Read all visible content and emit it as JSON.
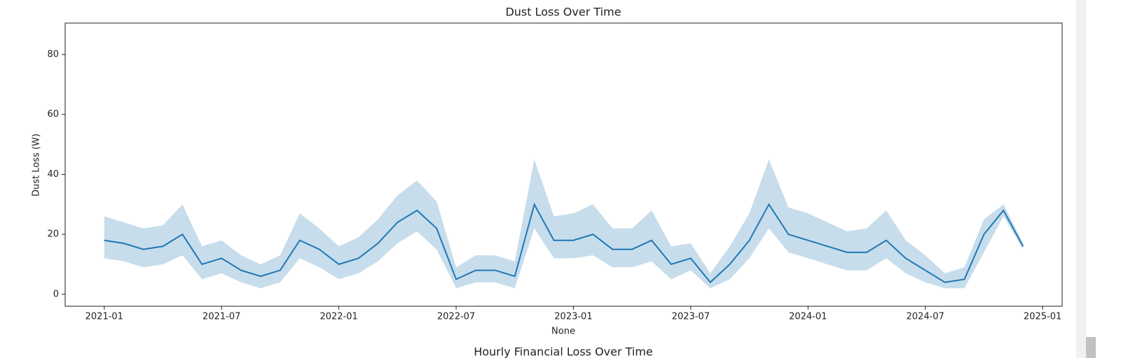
{
  "chart_data": {
    "type": "line",
    "title": "Dust Loss Over Time",
    "xlabel": "None",
    "ylabel": "Dust Loss (W)",
    "x": [
      "2021-01",
      "2021-02",
      "2021-03",
      "2021-04",
      "2021-05",
      "2021-06",
      "2021-07",
      "2021-08",
      "2021-09",
      "2021-10",
      "2021-11",
      "2021-12",
      "2022-01",
      "2022-02",
      "2022-03",
      "2022-04",
      "2022-05",
      "2022-06",
      "2022-07",
      "2022-08",
      "2022-09",
      "2022-10",
      "2022-11",
      "2022-12",
      "2023-01",
      "2023-02",
      "2023-03",
      "2023-04",
      "2023-05",
      "2023-06",
      "2023-07",
      "2023-08",
      "2023-09",
      "2023-10",
      "2023-11",
      "2023-12",
      "2024-01",
      "2024-02",
      "2024-03",
      "2024-04",
      "2024-05",
      "2024-06",
      "2024-07",
      "2024-08",
      "2024-09",
      "2024-10",
      "2024-11",
      "2024-12"
    ],
    "series": [
      {
        "color": "#1f77b4",
        "values": [
          18,
          17,
          15,
          16,
          20,
          10,
          12,
          8,
          6,
          8,
          18,
          15,
          10,
          12,
          17,
          24,
          28,
          22,
          5,
          8,
          8,
          6,
          30,
          18,
          18,
          20,
          15,
          15,
          18,
          10,
          12,
          4,
          10,
          18,
          30,
          20,
          18,
          16,
          14,
          14,
          18,
          12,
          8,
          4,
          5,
          20,
          28,
          16
        ],
        "lower": [
          12,
          11,
          9,
          10,
          13,
          5,
          7,
          4,
          2,
          4,
          12,
          9,
          5,
          7,
          11,
          17,
          21,
          15,
          2,
          4,
          4,
          2,
          22,
          12,
          12,
          13,
          9,
          9,
          11,
          5,
          8,
          2,
          5,
          12,
          22,
          14,
          12,
          10,
          8,
          8,
          12,
          7,
          4,
          2,
          2,
          14,
          26,
          15
        ],
        "upper": [
          26,
          24,
          22,
          23,
          30,
          16,
          18,
          13,
          10,
          13,
          27,
          22,
          16,
          19,
          25,
          33,
          38,
          31,
          9,
          13,
          13,
          11,
          45,
          26,
          27,
          30,
          22,
          22,
          28,
          16,
          17,
          7,
          16,
          27,
          45,
          29,
          27,
          24,
          21,
          22,
          28,
          18,
          13,
          7,
          9,
          25,
          30,
          17
        ]
      }
    ],
    "xlim": [
      "2020-11",
      "2025-02"
    ],
    "xticks": [
      "2021-01",
      "2021-07",
      "2022-01",
      "2022-07",
      "2023-01",
      "2023-07",
      "2024-01",
      "2024-07",
      "2025-01"
    ],
    "ylim": [
      -4,
      90.5
    ],
    "yticks": [
      0,
      20,
      40,
      60,
      80
    ]
  },
  "next_heading": "Hourly Financial Loss Over Time"
}
